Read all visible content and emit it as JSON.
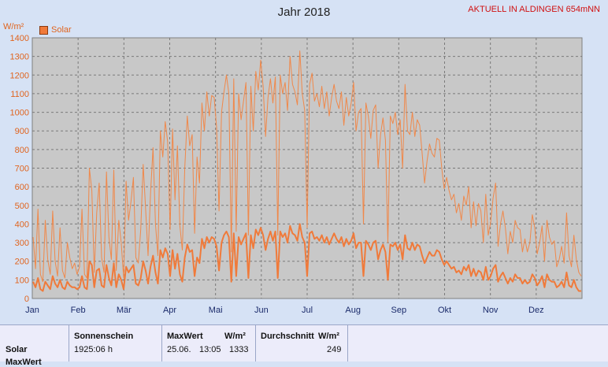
{
  "header": {
    "title": "Jahr 2018",
    "station": "AKTUELL IN ALDINGEN 654mNN"
  },
  "chart_data": {
    "type": "line",
    "title": "Jahr 2018",
    "ylabel": "W/m²",
    "ylim": [
      0,
      1400
    ],
    "yticks": [
      0,
      100,
      200,
      300,
      400,
      500,
      600,
      700,
      800,
      900,
      1000,
      1100,
      1200,
      1300,
      1400
    ],
    "xticks": [
      "Jan",
      "Feb",
      "Mär",
      "Apr",
      "Mai",
      "Jun",
      "Jul",
      "Aug",
      "Sep",
      "Okt",
      "Nov",
      "Dez"
    ],
    "grid": true,
    "legend": "top-left",
    "series": [
      {
        "name": "Solar",
        "kind": "daily-max",
        "color": "#f0884a",
        "values": [
          330,
          160,
          480,
          130,
          90,
          420,
          210,
          130,
          470,
          200,
          120,
          380,
          150,
          110,
          300,
          220,
          160,
          190,
          130,
          170,
          480,
          130,
          110,
          700,
          580,
          140,
          460,
          620,
          220,
          140,
          680,
          330,
          210,
          690,
          150,
          420,
          300,
          110,
          630,
          420,
          520,
          650,
          220,
          190,
          370,
          720,
          480,
          230,
          560,
          810,
          400,
          230,
          900,
          760,
          950,
          840,
          370,
          910,
          530,
          820,
          390,
          260,
          700,
          980,
          820,
          880,
          350,
          760,
          620,
          1050,
          900,
          1110,
          980,
          1090,
          1080,
          920,
          470,
          1000,
          1110,
          1200,
          1100,
          250,
          1180,
          360,
          1100,
          960,
          1060,
          1160,
          340,
          1140,
          900,
          1220,
          1120,
          1280,
          1140,
          870,
          1080,
          1180,
          1050,
          1190,
          340,
          1200,
          1100,
          1160,
          1010,
          1300,
          1150,
          1110,
          1040,
          1330,
          1100,
          1010,
          380,
          1150,
          1210,
          1060,
          1100,
          1030,
          1140,
          1020,
          1110,
          980,
          1080,
          1150,
          1060,
          1020,
          1110,
          930,
          1080,
          980,
          1050,
          1160,
          900,
          1000,
          1020,
          400,
          1050,
          980,
          860,
          1010,
          1040,
          700,
          880,
          970,
          850,
          300,
          980,
          940,
          1000,
          880,
          960,
          700,
          1150,
          900,
          880,
          1000,
          870,
          960,
          930,
          780,
          620,
          740,
          830,
          780,
          760,
          860,
          850,
          700,
          590,
          650,
          580,
          530,
          560,
          460,
          510,
          420,
          550,
          500,
          600,
          380,
          520,
          390,
          510,
          470,
          300,
          560,
          340,
          410,
          540,
          620,
          280,
          400,
          470,
          380,
          240,
          360,
          300,
          420,
          380,
          370,
          250,
          320,
          250,
          300,
          450,
          380,
          240,
          300,
          390,
          200,
          420,
          330,
          290,
          310,
          170,
          210,
          280,
          190,
          460,
          230,
          170,
          340,
          210,
          140,
          120
        ]
      },
      {
        "name": "Solar",
        "kind": "daily-average",
        "color": "#f07a3a",
        "values": [
          90,
          60,
          110,
          50,
          40,
          90,
          70,
          50,
          120,
          80,
          60,
          100,
          60,
          50,
          90,
          70,
          60,
          60,
          50,
          60,
          120,
          60,
          50,
          200,
          180,
          60,
          150,
          160,
          70,
          60,
          180,
          110,
          70,
          190,
          60,
          130,
          100,
          50,
          170,
          140,
          160,
          180,
          80,
          70,
          110,
          200,
          150,
          80,
          170,
          230,
          140,
          80,
          260,
          220,
          270,
          240,
          120,
          260,
          160,
          240,
          130,
          90,
          220,
          290,
          250,
          260,
          120,
          220,
          190,
          320,
          270,
          330,
          300,
          330,
          320,
          280,
          150,
          300,
          340,
          360,
          330,
          90,
          350,
          120,
          330,
          290,
          320,
          350,
          110,
          340,
          270,
          370,
          340,
          380,
          340,
          260,
          320,
          360,
          310,
          360,
          110,
          360,
          330,
          350,
          300,
          390,
          350,
          340,
          310,
          400,
          330,
          300,
          120,
          350,
          360,
          320,
          330,
          310,
          340,
          300,
          330,
          290,
          320,
          350,
          320,
          300,
          330,
          280,
          320,
          290,
          310,
          350,
          270,
          300,
          300,
          120,
          310,
          290,
          260,
          300,
          310,
          210,
          260,
          290,
          250,
          100,
          290,
          280,
          300,
          260,
          290,
          210,
          340,
          270,
          260,
          300,
          260,
          290,
          280,
          230,
          190,
          220,
          250,
          230,
          230,
          260,
          250,
          210,
          180,
          200,
          180,
          160,
          170,
          140,
          150,
          130,
          170,
          150,
          180,
          120,
          160,
          120,
          150,
          140,
          100,
          170,
          100,
          120,
          160,
          180,
          90,
          120,
          140,
          110,
          80,
          110,
          90,
          130,
          110,
          110,
          80,
          100,
          80,
          90,
          130,
          110,
          70,
          90,
          120,
          60,
          130,
          100,
          90,
          90,
          60,
          70,
          90,
          60,
          140,
          70,
          60,
          100,
          60,
          40,
          40
        ]
      }
    ]
  },
  "stats": {
    "row_label": "Solar",
    "row_label_2": "MaxWert",
    "sunshine_header": "Sonnenschein",
    "sunshine_value": "1925:06 h",
    "max_header": "MaxWert",
    "max_unit": "W/m²",
    "max_date": "25.06.",
    "max_time": "13:05",
    "max_value": "1333",
    "avg_header": "Durchschnitt",
    "avg_unit": "W/m²",
    "avg_value": "249"
  }
}
